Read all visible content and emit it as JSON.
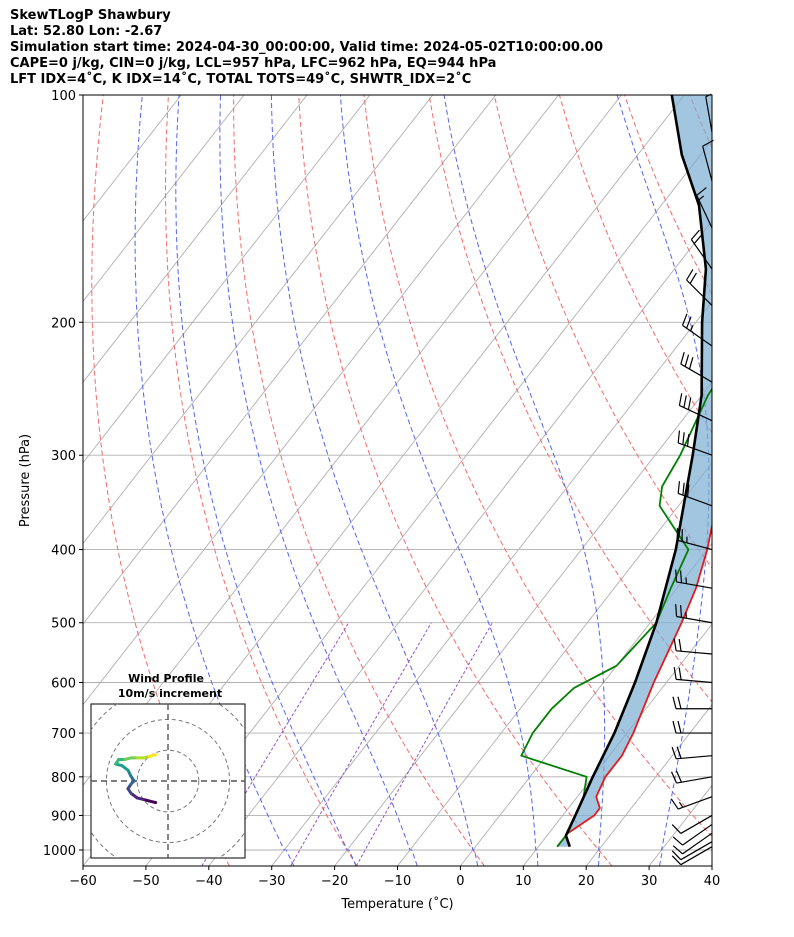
{
  "header": {
    "line1": "SkewTLogP Shawbury",
    "line2": "Lat: 52.80   Lon: -2.67",
    "line3": "Simulation start time: 2024-04-30_00:00:00, Valid time: 2024-05-02T10:00:00.00",
    "line4": "CAPE=0 j/kg, CIN=0 j/kg, LCL=957 hPa, LFC=962 hPa, EQ=944 hPa",
    "line5": "LFT IDX=4˚C, K IDX=14˚C, TOTAL TOTS=49˚C, SHWTR_IDX=2˚C"
  },
  "chart_data": [
    {
      "type": "line",
      "title": "",
      "xlabel": "Temperature (˚C)",
      "ylabel": "Pressure (hPa)",
      "xlim": [
        -60,
        40
      ],
      "ylim": [
        1050,
        100
      ],
      "y_scale": "log",
      "grid": true,
      "x_ticks": [
        "−60",
        "−50",
        "−40",
        "−30",
        "−20",
        "−10",
        "0",
        "10",
        "20",
        "30",
        "40"
      ],
      "y_ticks": [
        "100",
        "200",
        "300",
        "400",
        "500",
        "600",
        "700",
        "800",
        "900",
        "1000"
      ],
      "series": [
        {
          "role": "temperature",
          "color": "#e41a1c",
          "points": [
            [
              13,
              990
            ],
            [
              13,
              950
            ],
            [
              15,
              900
            ],
            [
              15,
              880
            ],
            [
              13,
              850
            ],
            [
              12,
              800
            ],
            [
              12,
              750
            ],
            [
              11,
              700
            ],
            [
              8,
              600
            ],
            [
              5,
              500
            ],
            [
              3,
              450
            ],
            [
              0,
              400
            ],
            [
              -4,
              350
            ],
            [
              -8,
              300
            ],
            [
              -12,
              250
            ],
            [
              -13,
              240
            ],
            [
              -12,
              220
            ],
            [
              -9,
              200
            ],
            [
              -5,
              180
            ],
            [
              -2,
              165
            ],
            [
              1,
              150
            ],
            [
              4,
              135
            ],
            [
              6,
              120
            ],
            [
              9,
              110
            ],
            [
              11,
              100
            ]
          ]
        },
        {
          "role": "dewpoint",
          "color": "#008000",
          "points": [
            [
              13,
              990
            ],
            [
              13,
              950
            ],
            [
              12,
              900
            ],
            [
              11,
              850
            ],
            [
              9,
              800
            ],
            [
              -4,
              750
            ],
            [
              -5,
              700
            ],
            [
              -5,
              650
            ],
            [
              -4,
              610
            ],
            [
              0,
              570
            ],
            [
              1,
              500
            ],
            [
              -1,
              450
            ],
            [
              -3,
              400
            ],
            [
              -13,
              350
            ],
            [
              -15,
              330
            ],
            [
              -16,
              300
            ],
            [
              -19,
              250
            ],
            [
              -20,
              220
            ],
            [
              -20,
              200
            ],
            [
              -24,
              185
            ],
            [
              -27,
              170
            ],
            [
              -27,
              165
            ],
            [
              -25,
              150
            ],
            [
              -22,
              130
            ],
            [
              -18,
              115
            ],
            [
              -15,
              100
            ]
          ]
        },
        {
          "role": "parcel",
          "color": "#000000",
          "points": [
            [
              15,
              990
            ],
            [
              13,
              957
            ],
            [
              12,
              900
            ],
            [
              10,
              800
            ],
            [
              8,
              700
            ],
            [
              5,
              600
            ],
            [
              1,
              500
            ],
            [
              -5,
              400
            ],
            [
              -14,
              300
            ],
            [
              -20,
              250
            ],
            [
              -29,
              200
            ],
            [
              -35,
              170
            ],
            [
              -44,
              140
            ],
            [
              -53,
              120
            ],
            [
              -62,
              100
            ]
          ]
        }
      ],
      "wind_barbs": [
        {
          "p": 990,
          "spd": 10,
          "dir": 240
        },
        {
          "p": 975,
          "spd": 10,
          "dir": 240
        },
        {
          "p": 950,
          "spd": 10,
          "dir": 235
        },
        {
          "p": 925,
          "spd": 10,
          "dir": 235
        },
        {
          "p": 900,
          "spd": 10,
          "dir": 240
        },
        {
          "p": 850,
          "spd": 15,
          "dir": 250
        },
        {
          "p": 800,
          "spd": 20,
          "dir": 260
        },
        {
          "p": 750,
          "spd": 20,
          "dir": 265
        },
        {
          "p": 700,
          "spd": 20,
          "dir": 270
        },
        {
          "p": 650,
          "spd": 20,
          "dir": 270
        },
        {
          "p": 600,
          "spd": 20,
          "dir": 275
        },
        {
          "p": 550,
          "spd": 20,
          "dir": 275
        },
        {
          "p": 500,
          "spd": 25,
          "dir": 280
        },
        {
          "p": 450,
          "spd": 25,
          "dir": 280
        },
        {
          "p": 400,
          "spd": 25,
          "dir": 285
        },
        {
          "p": 350,
          "spd": 30,
          "dir": 290
        },
        {
          "p": 300,
          "spd": 30,
          "dir": 290
        },
        {
          "p": 270,
          "spd": 30,
          "dir": 295
        },
        {
          "p": 240,
          "spd": 30,
          "dir": 300
        },
        {
          "p": 215,
          "spd": 25,
          "dir": 305
        },
        {
          "p": 190,
          "spd": 20,
          "dir": 315
        },
        {
          "p": 170,
          "spd": 20,
          "dir": 325
        },
        {
          "p": 150,
          "spd": 15,
          "dir": 335
        },
        {
          "p": 130,
          "spd": 10,
          "dir": 345
        },
        {
          "p": 112,
          "spd": 5,
          "dir": 350
        }
      ]
    },
    {
      "type": "scatter",
      "title": "Wind Profile",
      "subtitle": "10m/s increment",
      "ring_increment": 10,
      "xlim": [
        -25,
        25
      ],
      "ylim": [
        -25,
        25
      ],
      "colormap": "viridis",
      "points": [
        [
          -4,
          -7
        ],
        [
          -6,
          -6.5
        ],
        [
          -8,
          -6
        ],
        [
          -10,
          -5.5
        ],
        [
          -12,
          -4
        ],
        [
          -13,
          -2.5
        ],
        [
          -12,
          -1
        ],
        [
          -11,
          0
        ],
        [
          -12,
          1.5
        ],
        [
          -13,
          3.5
        ],
        [
          -15,
          5
        ],
        [
          -17,
          5.5
        ],
        [
          -16,
          7
        ],
        [
          -14,
          7
        ],
        [
          -12,
          7.5
        ],
        [
          -10,
          7.5
        ],
        [
          -8,
          7.5
        ],
        [
          -6,
          8
        ],
        [
          -4,
          8.5
        ]
      ]
    }
  ]
}
